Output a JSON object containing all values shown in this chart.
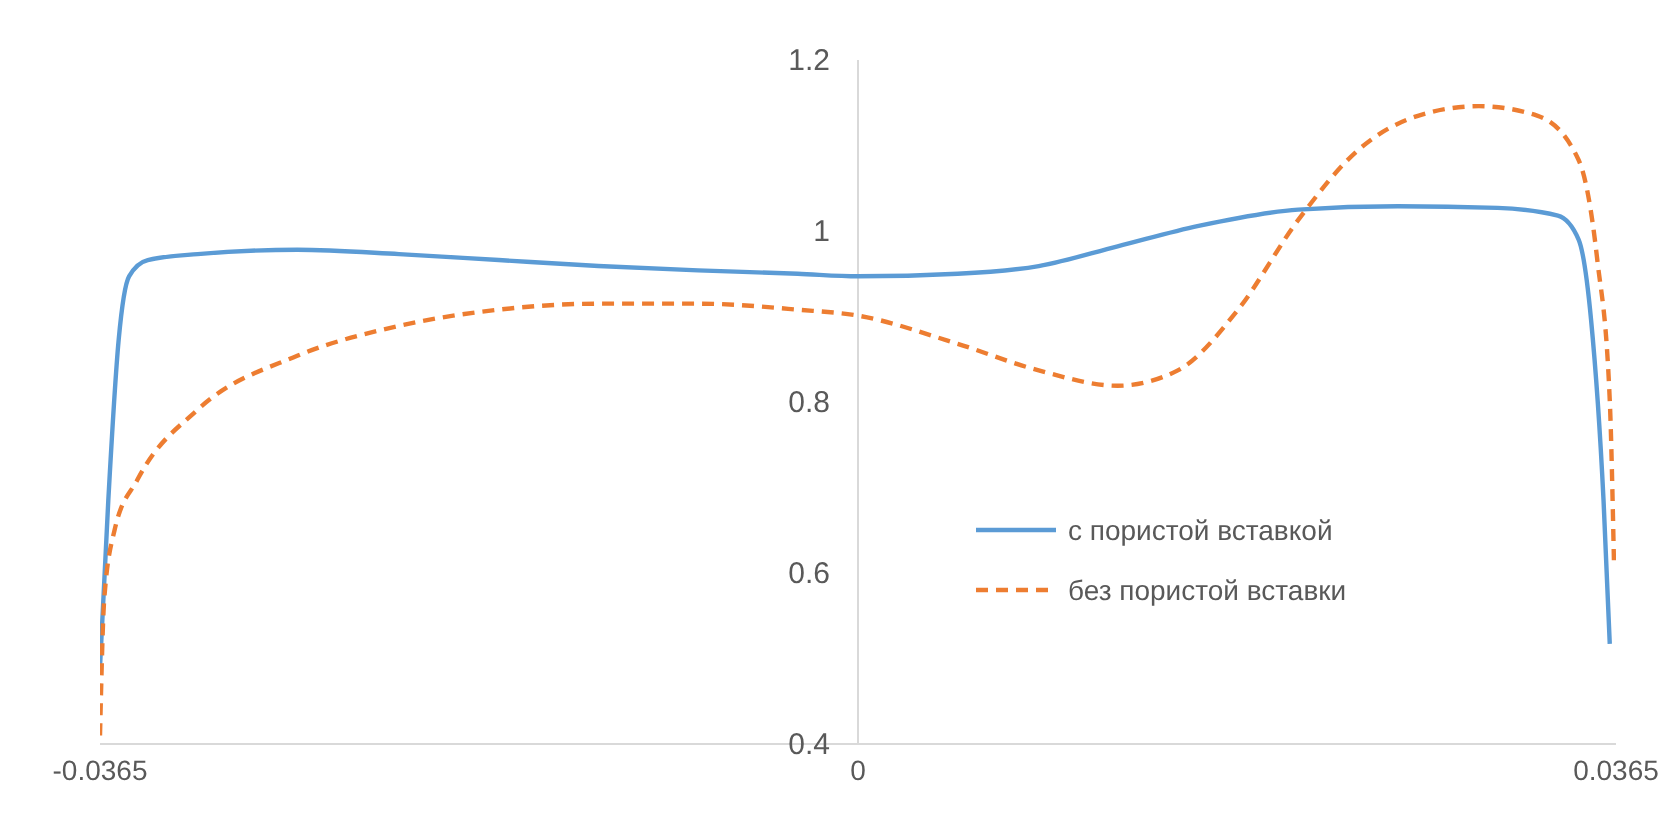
{
  "chart_data": {
    "type": "line",
    "xlim": [
      -0.0365,
      0.0365
    ],
    "xticks": [
      -0.0365,
      0,
      0.0365
    ],
    "ylim": [
      0.4,
      1.2
    ],
    "yticks": [
      0.4,
      0.6,
      0.8,
      1,
      1.2
    ],
    "grid": false,
    "legend": "right",
    "marker": "none",
    "series": [
      {
        "name": "с пористой вставкой",
        "color": "#5b9bd5",
        "line_style": "solid",
        "x": [
          -0.0365,
          -0.0361,
          -0.0356,
          -0.0351,
          -0.0342,
          -0.0318,
          -0.027,
          -0.0221,
          -0.0173,
          -0.0125,
          -0.0077,
          -0.0029,
          0,
          0.0048,
          0.0087,
          0.0125,
          0.0164,
          0.0212,
          0.026,
          0.0308,
          0.0337,
          0.0347,
          0.0353,
          0.0359,
          0.0362
        ],
        "values": [
          0.49,
          0.685,
          0.873,
          0.947,
          0.966,
          0.973,
          0.978,
          0.973,
          0.966,
          0.959,
          0.954,
          0.95,
          0.947,
          0.95,
          0.959,
          0.982,
          1.006,
          1.025,
          1.029,
          1.027,
          1.018,
          0.99,
          0.896,
          0.685,
          0.517
        ]
      },
      {
        "name": "без пористой вставки",
        "color": "#ed7d31",
        "line_style": "dashed",
        "x": [
          -0.0365,
          -0.0363,
          -0.0358,
          -0.0347,
          -0.0318,
          -0.027,
          -0.0221,
          -0.0173,
          -0.0125,
          -0.0077,
          -0.0029,
          0,
          0.0048,
          0.0087,
          0.0125,
          0.0154,
          0.0183,
          0.0212,
          0.0241,
          0.027,
          0.0299,
          0.0327,
          0.0347,
          0.0356,
          0.0362,
          0.0364
        ],
        "values": [
          0.41,
          0.568,
          0.65,
          0.709,
          0.791,
          0.854,
          0.889,
          0.908,
          0.915,
          0.915,
          0.908,
          0.901,
          0.868,
          0.837,
          0.819,
          0.837,
          0.908,
          1.013,
          1.095,
          1.135,
          1.146,
          1.135,
          1.083,
          0.966,
          0.802,
          0.615
        ]
      }
    ]
  }
}
